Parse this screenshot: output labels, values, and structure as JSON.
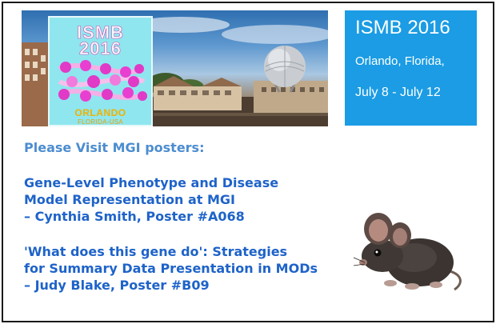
{
  "banner": {
    "logo": {
      "line1": "ISMB",
      "line2": "2016",
      "city": "ORLANDO",
      "country": "FLORIDA-USA"
    }
  },
  "info_box": {
    "title": "ISMB 2016",
    "location": "Orlando, Florida,",
    "dates": "July 8 - July 12",
    "color": "#1b9ce4"
  },
  "content": {
    "heading": "Please Visit MGI posters:",
    "posters": [
      {
        "title_line1": "Gene-Level Phenotype and Disease",
        "title_line2": "Model Representation at MGI",
        "author": "– Cynthia Smith, Poster #A068"
      },
      {
        "title_line1": "'What does this gene do': Strategies",
        "title_line2": "for Summary Data Presentation in MODs",
        "author": "– Judy Blake, Poster #B09"
      }
    ],
    "colors": {
      "heading": "#4c8dd0",
      "poster_text": "#1e63c9"
    }
  },
  "images": {
    "mouse": "mouse-photo",
    "banner": "orlando-skyline-photo"
  }
}
